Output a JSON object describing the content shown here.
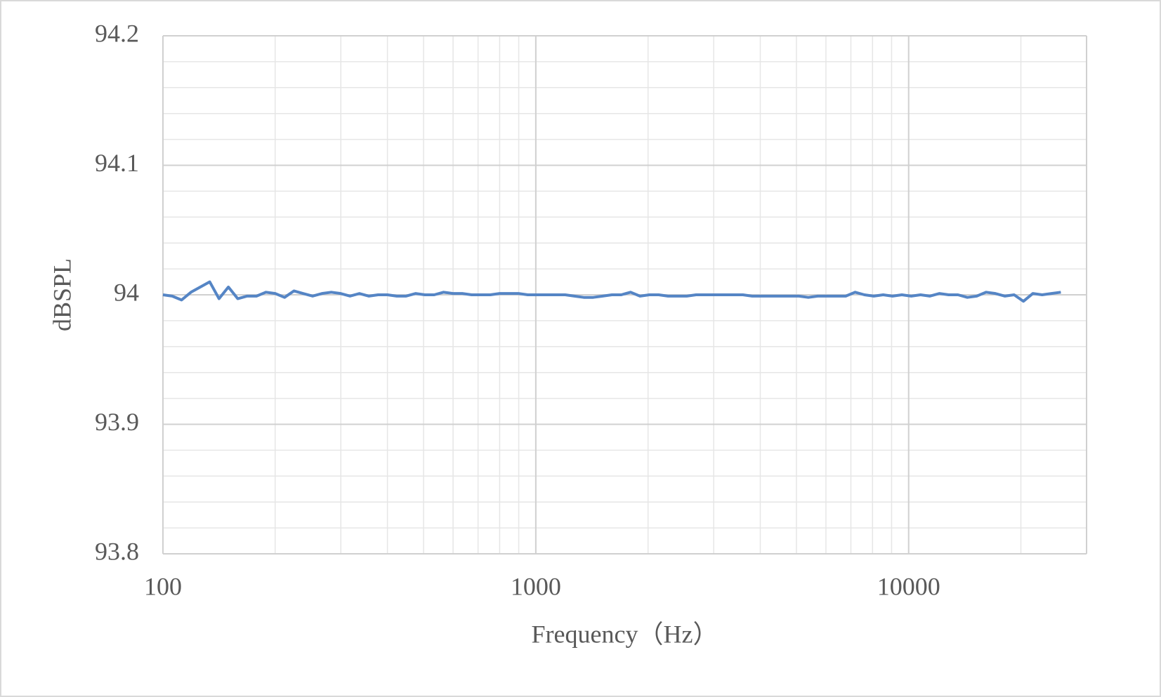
{
  "chart_data": {
    "type": "line",
    "xlabel": "Frequency（Hz）",
    "ylabel": "dBSPL",
    "x": [
      100,
      105.9,
      112.2,
      118.9,
      126.0,
      133.5,
      141.4,
      149.8,
      158.7,
      168.2,
      178.2,
      188.8,
      200,
      211.9,
      224.5,
      237.8,
      252.0,
      267.0,
      282.8,
      299.7,
      317.5,
      336.4,
      356.4,
      377.6,
      400,
      423.8,
      449.0,
      475.7,
      504.0,
      534.0,
      565.7,
      599.3,
      635.0,
      672.7,
      712.7,
      755.1,
      800,
      847.6,
      898.0,
      951.4,
      1008,
      1068,
      1131,
      1199,
      1270,
      1345,
      1425,
      1510,
      1600,
      1695,
      1796,
      1903,
      2016,
      2136,
      2263,
      2397,
      2540,
      2691,
      2851,
      3020,
      3200,
      3390,
      3592,
      3805,
      4032,
      4271,
      4525,
      4795,
      5080,
      5382,
      5702,
      6041,
      6400,
      6781,
      7184,
      7611,
      8063,
      8543,
      9051,
      9589,
      10159,
      10763,
      11404,
      12082,
      12800,
      13561,
      14368,
      15222,
      16127,
      17086,
      18102,
      19179,
      20319,
      21527,
      22807,
      24163,
      25600
    ],
    "series": [
      {
        "name": "dBSPL",
        "color": "#5585c5",
        "values": [
          94.0,
          93.999,
          93.996,
          94.002,
          94.006,
          94.01,
          93.997,
          94.006,
          93.997,
          93.999,
          93.999,
          94.002,
          94.001,
          93.998,
          94.003,
          94.001,
          93.999,
          94.001,
          94.002,
          94.001,
          93.999,
          94.001,
          93.999,
          94.0,
          94.0,
          93.999,
          93.999,
          94.001,
          94.0,
          94.0,
          94.002,
          94.001,
          94.001,
          94.0,
          94.0,
          94.0,
          94.001,
          94.001,
          94.001,
          94.0,
          94.0,
          94.0,
          94.0,
          94.0,
          93.999,
          93.998,
          93.998,
          93.999,
          94.0,
          94.0,
          94.002,
          93.999,
          94.0,
          94.0,
          93.999,
          93.999,
          93.999,
          94.0,
          94.0,
          94.0,
          94.0,
          94.0,
          94.0,
          93.999,
          93.999,
          93.999,
          93.999,
          93.999,
          93.999,
          93.998,
          93.999,
          93.999,
          93.999,
          93.999,
          94.002,
          94.0,
          93.999,
          94.0,
          93.999,
          94.0,
          93.999,
          94.0,
          93.999,
          94.001,
          94.0,
          94.0,
          93.998,
          93.999,
          94.002,
          94.001,
          93.999,
          94.0,
          93.995,
          94.001,
          94.0,
          94.001,
          94.002
        ]
      }
    ],
    "xscale": "log",
    "xlim": [
      100,
      30000
    ],
    "xticks": [
      100,
      1000,
      10000
    ],
    "ylim": [
      93.8,
      94.2
    ],
    "yticks": [
      93.8,
      93.9,
      94,
      94.1,
      94.2
    ],
    "grid": true,
    "minor_grid": true
  }
}
